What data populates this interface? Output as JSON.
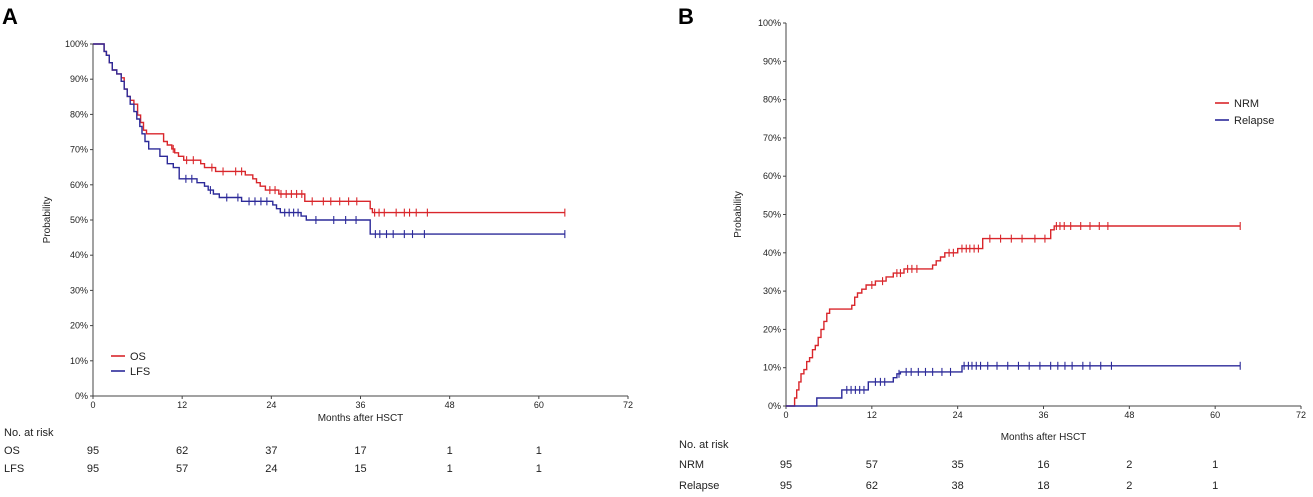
{
  "chart_data": [
    {
      "type": "line",
      "panel": "A",
      "xlabel": "Months after HSCT",
      "ylabel": "Probability",
      "xlim": [
        0,
        72
      ],
      "ylim": [
        0,
        100
      ],
      "x_ticks": [
        0,
        12,
        24,
        36,
        48,
        60,
        72
      ],
      "y_ticks": [
        0,
        10,
        20,
        30,
        40,
        50,
        60,
        70,
        80,
        90,
        100
      ],
      "y_tick_labels": [
        "0%",
        "10%",
        "20%",
        "30%",
        "40%",
        "50%",
        "60%",
        "70%",
        "80%",
        "90%",
        "100%"
      ],
      "legend_position": "bottom-left",
      "series": [
        {
          "name": "OS",
          "color": "#d9262b",
          "steps": [
            [
              0,
              100
            ],
            [
              1.2,
              100
            ],
            [
              1.5,
              97.9
            ],
            [
              1.8,
              96.8
            ],
            [
              2.2,
              94.7
            ],
            [
              2.6,
              92.6
            ],
            [
              3.2,
              91.5
            ],
            [
              3.8,
              90.4
            ],
            [
              4.2,
              87.2
            ],
            [
              4.6,
              85.1
            ],
            [
              5.0,
              84.0
            ],
            [
              5.5,
              82.9
            ],
            [
              6.0,
              79.8
            ],
            [
              6.4,
              77.7
            ],
            [
              6.8,
              75.5
            ],
            [
              7.2,
              74.5
            ],
            [
              9.5,
              72.3
            ],
            [
              10.0,
              71.3
            ],
            [
              10.6,
              70.2
            ],
            [
              11.0,
              69.1
            ],
            [
              11.5,
              68.1
            ],
            [
              12.2,
              67.0
            ],
            [
              14.5,
              66.0
            ],
            [
              15.0,
              64.9
            ],
            [
              16.5,
              63.8
            ],
            [
              18.0,
              63.8
            ],
            [
              20.5,
              62.8
            ],
            [
              21.5,
              61.7
            ],
            [
              22.0,
              60.6
            ],
            [
              22.5,
              59.6
            ],
            [
              23.2,
              58.5
            ],
            [
              25.0,
              57.4
            ],
            [
              28.0,
              57.4
            ],
            [
              28.5,
              55.3
            ],
            [
              37.0,
              55.3
            ],
            [
              37.3,
              53.2
            ],
            [
              37.6,
              52.1
            ],
            [
              63.5,
              52.1
            ]
          ],
          "censor": [
            10.8,
            12.6,
            13.5,
            16.0,
            17.5,
            19.2,
            20.0,
            23.8,
            24.5,
            25.3,
            26.0,
            26.7,
            27.4,
            28.1,
            29.5,
            31.0,
            32.0,
            33.2,
            34.4,
            35.5,
            37.9,
            38.5,
            39.2,
            40.8,
            41.9,
            42.6,
            43.5,
            45.0,
            63.5
          ],
          "risk": [
            95,
            62,
            37,
            17,
            1,
            1
          ]
        },
        {
          "name": "LFS",
          "color": "#2c2a99",
          "steps": [
            [
              0,
              100
            ],
            [
              1.2,
              100
            ],
            [
              1.5,
              97.9
            ],
            [
              1.8,
              96.8
            ],
            [
              2.2,
              94.7
            ],
            [
              2.6,
              92.6
            ],
            [
              3.2,
              91.5
            ],
            [
              3.8,
              89.4
            ],
            [
              4.2,
              87.2
            ],
            [
              4.6,
              85.1
            ],
            [
              5.0,
              82.9
            ],
            [
              5.5,
              80.8
            ],
            [
              5.9,
              78.7
            ],
            [
              6.3,
              76.6
            ],
            [
              6.6,
              74.5
            ],
            [
              7.0,
              72.3
            ],
            [
              7.5,
              70.2
            ],
            [
              9.0,
              68.1
            ],
            [
              10.0,
              66.0
            ],
            [
              10.8,
              64.9
            ],
            [
              11.6,
              61.7
            ],
            [
              14.0,
              60.6
            ],
            [
              15.0,
              59.6
            ],
            [
              15.5,
              58.5
            ],
            [
              16.2,
              57.4
            ],
            [
              17.0,
              56.4
            ],
            [
              19.0,
              56.4
            ],
            [
              20.0,
              55.3
            ],
            [
              24.2,
              54.3
            ],
            [
              24.7,
              53.2
            ],
            [
              25.2,
              52.1
            ],
            [
              28.0,
              51.1
            ],
            [
              28.7,
              50.0
            ],
            [
              37.0,
              50.0
            ],
            [
              37.3,
              46.0
            ],
            [
              63.5,
              46.0
            ]
          ],
          "censor": [
            12.5,
            13.3,
            15.8,
            18.0,
            19.5,
            21.0,
            21.8,
            22.6,
            23.4,
            25.8,
            26.4,
            27.0,
            27.6,
            30.0,
            32.4,
            34.0,
            35.4,
            38.0,
            38.6,
            39.5,
            40.4,
            41.9,
            43.0,
            44.6,
            63.5
          ],
          "risk": [
            95,
            57,
            24,
            15,
            1,
            1
          ]
        }
      ],
      "risk_table": {
        "title": "No. at risk",
        "rows": [
          {
            "label": "OS",
            "values": [
              "95",
              "62",
              "37",
              "17",
              "1",
              "1"
            ]
          },
          {
            "label": "LFS",
            "values": [
              "95",
              "57",
              "24",
              "15",
              "1",
              "1"
            ]
          }
        ]
      }
    },
    {
      "type": "line",
      "panel": "B",
      "xlabel": "Months after HSCT",
      "ylabel": "Probability",
      "xlim": [
        0,
        72
      ],
      "ylim": [
        0,
        100
      ],
      "x_ticks": [
        0,
        12,
        24,
        36,
        48,
        60,
        72
      ],
      "y_ticks": [
        0,
        10,
        20,
        30,
        40,
        50,
        60,
        70,
        80,
        90,
        100
      ],
      "y_tick_labels": [
        "0%",
        "10%",
        "20%",
        "30%",
        "40%",
        "50%",
        "60%",
        "70%",
        "80%",
        "90%",
        "100%"
      ],
      "legend_position": "top-right",
      "series": [
        {
          "name": "NRM",
          "color": "#d9262b",
          "steps": [
            [
              0,
              0
            ],
            [
              1.0,
              0
            ],
            [
              1.2,
              2.1
            ],
            [
              1.5,
              4.2
            ],
            [
              1.8,
              6.3
            ],
            [
              2.1,
              8.4
            ],
            [
              2.5,
              9.5
            ],
            [
              2.9,
              11.6
            ],
            [
              3.3,
              12.6
            ],
            [
              3.7,
              14.7
            ],
            [
              4.1,
              15.8
            ],
            [
              4.5,
              17.9
            ],
            [
              4.9,
              20.0
            ],
            [
              5.3,
              22.1
            ],
            [
              5.7,
              24.2
            ],
            [
              6.1,
              25.3
            ],
            [
              9.2,
              26.3
            ],
            [
              9.6,
              28.4
            ],
            [
              10.0,
              29.5
            ],
            [
              10.6,
              30.5
            ],
            [
              11.2,
              31.6
            ],
            [
              12.5,
              32.6
            ],
            [
              14.0,
              33.7
            ],
            [
              15.0,
              34.7
            ],
            [
              16.5,
              35.8
            ],
            [
              20.5,
              36.8
            ],
            [
              21.0,
              37.9
            ],
            [
              21.6,
              38.9
            ],
            [
              22.2,
              40.0
            ],
            [
              24.0,
              41.1
            ],
            [
              27.5,
              43.7
            ],
            [
              37.0,
              46.0
            ],
            [
              37.5,
              47.0
            ],
            [
              63.5,
              47.0
            ]
          ],
          "censor": [
            12.0,
            13.5,
            15.5,
            16.0,
            17.0,
            17.6,
            18.3,
            22.8,
            23.4,
            24.6,
            25.2,
            25.7,
            26.3,
            26.9,
            28.5,
            30.0,
            31.5,
            33.0,
            34.8,
            36.2,
            37.8,
            38.3,
            38.9,
            39.8,
            41.2,
            42.5,
            43.8,
            45.0,
            63.5
          ],
          "risk": [
            95,
            57,
            35,
            16,
            2,
            1
          ]
        },
        {
          "name": "Relapse",
          "color": "#2c2a99",
          "steps": [
            [
              0,
              0
            ],
            [
              1.0,
              0
            ],
            [
              4.0,
              0
            ],
            [
              4.3,
              2.1
            ],
            [
              7.5,
              2.1
            ],
            [
              7.8,
              4.2
            ],
            [
              11.0,
              4.2
            ],
            [
              11.5,
              6.3
            ],
            [
              14.5,
              6.3
            ],
            [
              15.0,
              7.4
            ],
            [
              15.5,
              8.4
            ],
            [
              16.0,
              8.9
            ],
            [
              24.2,
              8.9
            ],
            [
              24.6,
              10.5
            ],
            [
              63.5,
              10.5
            ]
          ],
          "censor": [
            8.5,
            9.1,
            9.7,
            10.3,
            10.9,
            12.5,
            13.2,
            13.8,
            15.8,
            16.8,
            17.5,
            18.5,
            19.5,
            20.5,
            21.8,
            23.0,
            24.9,
            25.5,
            26.0,
            26.6,
            27.2,
            28.2,
            29.5,
            31.0,
            32.5,
            34.0,
            35.5,
            37.0,
            38.0,
            39.0,
            40.0,
            41.5,
            42.5,
            44.0,
            45.5,
            63.5
          ],
          "risk": [
            95,
            62,
            38,
            18,
            2,
            1
          ]
        }
      ],
      "risk_table": {
        "title": "No. at risk",
        "rows": [
          {
            "label": "NRM",
            "values": [
              "95",
              "57",
              "35",
              "16",
              "2",
              "1"
            ]
          },
          {
            "label": "Relapse",
            "values": [
              "95",
              "62",
              "38",
              "18",
              "2",
              "1"
            ]
          }
        ]
      }
    }
  ]
}
